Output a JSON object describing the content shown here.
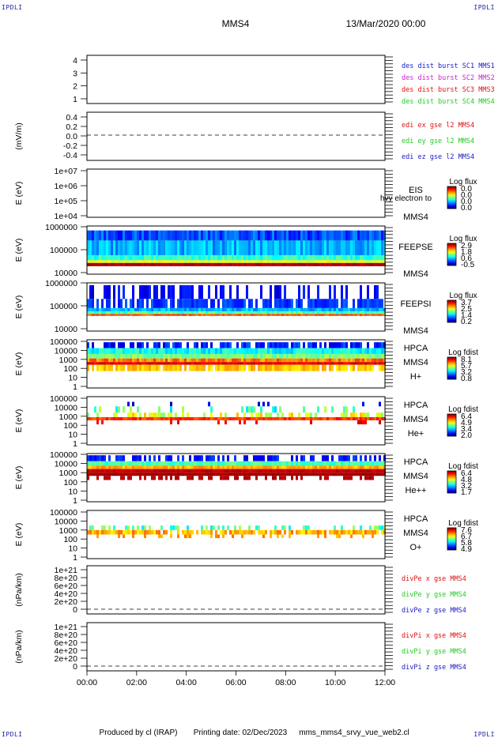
{
  "corner_label": "IPDLI",
  "header": {
    "spacecraft": "MMS4",
    "date": "13/Mar/2020 00:00"
  },
  "footer": {
    "producer": "Produced by cl (IRAP)",
    "printing": "Printing date: 02/Dec/2023",
    "script": "mms_mms4_srvy_vue_web2.cl"
  },
  "chart_data": [
    {
      "type": "line",
      "yticks": [
        "4",
        "3",
        "2",
        "1"
      ],
      "ylim": [
        0.6,
        4.4
      ],
      "ylabel": "",
      "legend": [
        {
          "text": "des dist burst SC1 MMS1",
          "color": "#1a1acc"
        },
        {
          "text": "des dist burst SC2 MMS2",
          "color": "#cc22cc"
        },
        {
          "text": "des dist burst SC3 MMS3",
          "color": "#dd1111"
        },
        {
          "text": "des dist burst SC4 MMS4",
          "color": "#22cc22"
        }
      ],
      "series": []
    },
    {
      "type": "line",
      "yticks": [
        "0.4",
        "0.2",
        "0.0",
        "-0.2",
        "-0.4"
      ],
      "ylim": [
        -0.5,
        0.5
      ],
      "ylabel": "(mV/m)",
      "zero_dashed": true,
      "legend": [
        {
          "text": "edi ex gse l2 MMS4",
          "color": "#dd1111"
        },
        {
          "text": "edi ey gse l2 MMS4",
          "color": "#22cc22"
        },
        {
          "text": "edi ez gse l2 MMS4",
          "color": "#1a1acc"
        }
      ],
      "series": []
    },
    {
      "type": "heatmap",
      "yticks": [
        "1e+07",
        "1e+06",
        "1e+05",
        "1e+04"
      ],
      "ylabel": "E (eV)",
      "instrument": [
        "EIS",
        "MMS4"
      ],
      "overlay_text": "hvy electron to",
      "colorbar": {
        "title": "Log flux",
        "ticks": [
          "0.0",
          "0.0",
          "0.0",
          "0.0"
        ]
      }
    },
    {
      "type": "heatmap",
      "yticks": [
        "1000000",
        "100000",
        "10000"
      ],
      "ylabel": "E (eV)",
      "instrument": [
        "FEEPSE",
        "MMS4"
      ],
      "colorbar": {
        "title": "Log flux",
        "ticks": [
          "2.9",
          "1.8",
          "0.6",
          "-0.5"
        ]
      }
    },
    {
      "type": "heatmap",
      "yticks": [
        "1000000",
        "100000",
        "10000"
      ],
      "ylabel": "E (eV)",
      "instrument": [
        "FEEPSI",
        "MMS4"
      ],
      "colorbar": {
        "title": "Log flux",
        "ticks": [
          "3.7",
          "2.5",
          "1.4",
          "0.2"
        ]
      }
    },
    {
      "type": "heatmap",
      "yticks": [
        "100000",
        "10000",
        "1000",
        "100",
        "10",
        "1"
      ],
      "ylabel": "E (eV)",
      "instrument": [
        "HPCA",
        "MMS4",
        "H+"
      ],
      "colorbar": {
        "title": "Log fdist",
        "ticks": [
          "8.1",
          "5.7",
          "3.2",
          "0.8"
        ]
      }
    },
    {
      "type": "heatmap",
      "yticks": [
        "100000",
        "10000",
        "1000",
        "100",
        "10",
        "1"
      ],
      "ylabel": "E (eV)",
      "instrument": [
        "HPCA",
        "MMS4",
        "He+"
      ],
      "colorbar": {
        "title": "Log fdist",
        "ticks": [
          "6.4",
          "4.9",
          "3.4",
          "2.0"
        ]
      }
    },
    {
      "type": "heatmap",
      "yticks": [
        "100000",
        "10000",
        "1000",
        "100",
        "10",
        "1"
      ],
      "ylabel": "E (eV)",
      "instrument": [
        "HPCA",
        "MMS4",
        "He++"
      ],
      "colorbar": {
        "title": "Log fdist",
        "ticks": [
          "6.4",
          "4.8",
          "3.2",
          "1.7"
        ]
      }
    },
    {
      "type": "heatmap",
      "yticks": [
        "100000",
        "10000",
        "1000",
        "100",
        "10",
        "1"
      ],
      "ylabel": "E (eV)",
      "instrument": [
        "HPCA",
        "MMS4",
        "O+"
      ],
      "colorbar": {
        "title": "Log fdist",
        "ticks": [
          "7.6",
          "6.7",
          "5.8",
          "4.9"
        ]
      }
    },
    {
      "type": "line",
      "yticks": [
        "1e+21",
        "8e+20",
        "6e+20",
        "4e+20",
        "2e+20",
        "0"
      ],
      "ylim": [
        -1e+20,
        1.1e+21
      ],
      "ylabel": "(nPa/km)",
      "zero_dashed": true,
      "legend": [
        {
          "text": "divPe x gse MMS4",
          "color": "#dd1111"
        },
        {
          "text": "divPe y gse MMS4",
          "color": "#22cc22"
        },
        {
          "text": "divPe z gse MMS4",
          "color": "#1a1acc"
        }
      ],
      "series": []
    },
    {
      "type": "line",
      "yticks": [
        "1e+21",
        "8e+20",
        "6e+20",
        "4e+20",
        "2e+20",
        "0"
      ],
      "ylim": [
        -1e+20,
        1.1e+21
      ],
      "ylabel": "(nPa/km)",
      "zero_dashed": true,
      "legend": [
        {
          "text": "divPi x gse MMS4",
          "color": "#dd1111"
        },
        {
          "text": "divPi y gse MMS4",
          "color": "#22cc22"
        },
        {
          "text": "divPi z gse MMS4",
          "color": "#1a1acc"
        }
      ],
      "series": []
    }
  ],
  "x_axis": {
    "ticks": [
      "00:00",
      "02:00",
      "04:00",
      "06:00",
      "08:00",
      "10:00",
      "12:00"
    ]
  }
}
